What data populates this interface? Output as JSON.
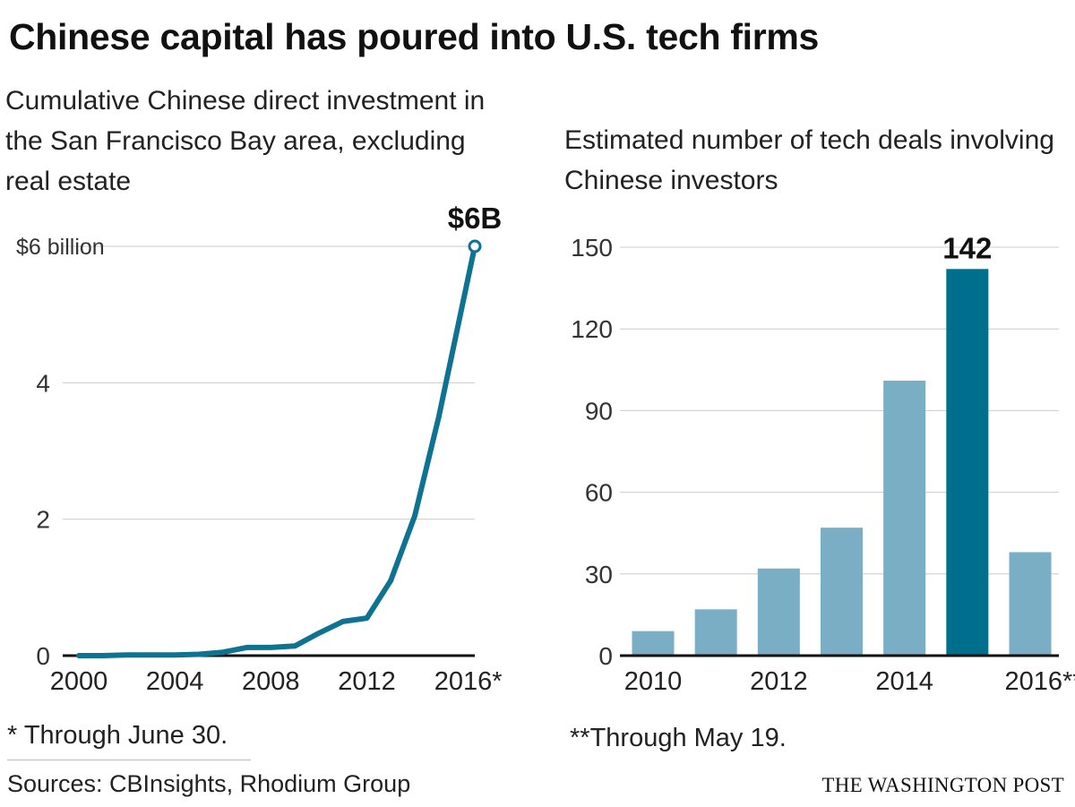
{
  "title": "Chinese capital has poured into U.S. tech firms",
  "notes": {
    "left": "* Through June 30.",
    "right": "**Through May 19."
  },
  "sources": "Sources: CBInsights, Rhodium Group",
  "credit": "THE WASHINGTON POST",
  "colors": {
    "line": "#0e7391",
    "bar_light": "#7aaec5",
    "bar_dark": "#006f8e",
    "grid": "#cccccc",
    "axis": "#111111"
  },
  "chart_data": [
    {
      "type": "line",
      "title": "Cumulative Chinese direct investment in the San Francisco Bay area, excluding real estate",
      "x_axis": {
        "range": [
          2000,
          2016.5
        ],
        "ticks": [
          2000,
          2004,
          2008,
          2012,
          2016
        ],
        "tick_labels": [
          "2000",
          "2004",
          "2008",
          "2012",
          "2016*"
        ]
      },
      "y_axis": {
        "range": [
          0,
          6
        ],
        "ticks": [
          0,
          2,
          4,
          6
        ],
        "tick_labels": [
          "0",
          "2",
          "4",
          "$6 billion"
        ],
        "unit": "billion USD"
      },
      "series": [
        {
          "name": "Cumulative investment",
          "points": [
            [
              2000,
              0.0
            ],
            [
              2001,
              0.0
            ],
            [
              2002,
              0.01
            ],
            [
              2003,
              0.01
            ],
            [
              2004,
              0.01
            ],
            [
              2005,
              0.02
            ],
            [
              2006,
              0.05
            ],
            [
              2007,
              0.12
            ],
            [
              2008,
              0.12
            ],
            [
              2009,
              0.14
            ],
            [
              2010,
              0.33
            ],
            [
              2011,
              0.5
            ],
            [
              2012,
              0.55
            ],
            [
              2013,
              1.1
            ],
            [
              2014,
              2.05
            ],
            [
              2015,
              3.5
            ],
            [
              2016.5,
              6.0
            ]
          ]
        }
      ],
      "annotation": {
        "label": "$6B",
        "x": 2016.5,
        "y": 6.0
      }
    },
    {
      "type": "bar",
      "title": "Estimated number of tech deals involving Chinese investors",
      "categories": [
        "2010",
        "2011",
        "2012",
        "2013",
        "2014",
        "2015",
        "2016**"
      ],
      "x_tick_labels": [
        "2010",
        "",
        "2012",
        "",
        "2014",
        "",
        "2016**"
      ],
      "values": [
        9,
        17,
        32,
        47,
        101,
        142,
        38
      ],
      "highlight_index": 5,
      "annotation": {
        "label": "142",
        "category": "2015"
      },
      "y_axis": {
        "range": [
          0,
          150
        ],
        "ticks": [
          0,
          30,
          60,
          90,
          120,
          150
        ],
        "tick_labels": [
          "0",
          "30",
          "60",
          "90",
          "120",
          "150"
        ]
      }
    }
  ]
}
